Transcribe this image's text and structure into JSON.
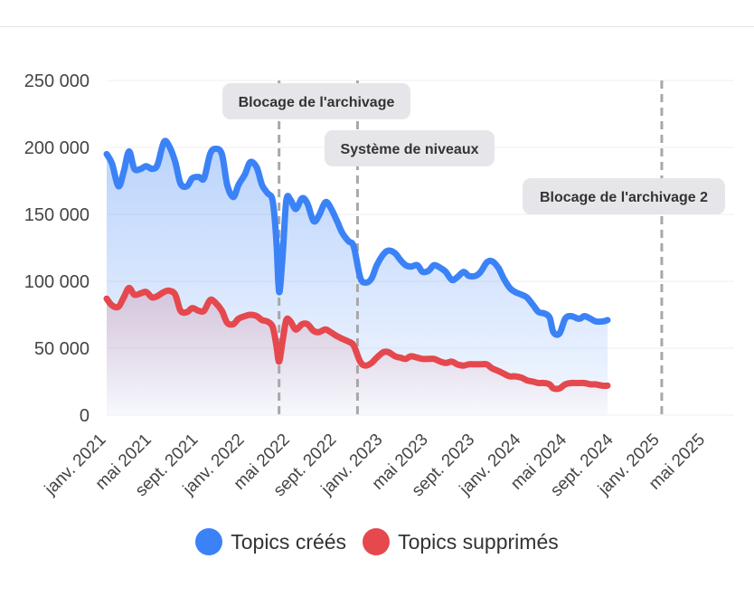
{
  "chart_data": {
    "type": "area",
    "x_tick_labels": [
      "janv. 2021",
      "mai 2021",
      "sept. 2021",
      "janv. 2022",
      "mai 2022",
      "sept. 2022",
      "janv. 2023",
      "mai 2023",
      "sept. 2023",
      "janv. 2024",
      "mai 2024",
      "sept. 2024",
      "janv. 2025",
      "mai 2025"
    ],
    "x_tick_dates": [
      "2021-01-01",
      "2021-05-01",
      "2021-09-01",
      "2022-01-01",
      "2022-05-01",
      "2022-09-01",
      "2023-01-01",
      "2023-05-01",
      "2023-09-01",
      "2024-01-01",
      "2024-05-01",
      "2024-09-01",
      "2025-01-01",
      "2025-05-01"
    ],
    "x_range": [
      "2021-01-01",
      "2025-07-15"
    ],
    "y_tick_labels": [
      "0",
      "50 000",
      "100 000",
      "150 000",
      "200 000",
      "250 000"
    ],
    "ylim": [
      0,
      250000
    ],
    "grid": true,
    "legend_position": "bottom",
    "series": [
      {
        "name": "Topics créés",
        "color": "#3b82f6",
        "points": [
          [
            "2021-01-01",
            195000
          ],
          [
            "2021-01-15",
            188000
          ],
          [
            "2021-02-01",
            171000
          ],
          [
            "2021-02-15",
            182000
          ],
          [
            "2021-03-01",
            197000
          ],
          [
            "2021-03-15",
            184000
          ],
          [
            "2021-04-01",
            184000
          ],
          [
            "2021-04-15",
            186000
          ],
          [
            "2021-05-01",
            184000
          ],
          [
            "2021-05-15",
            187000
          ],
          [
            "2021-06-01",
            204000
          ],
          [
            "2021-06-15",
            201000
          ],
          [
            "2021-07-01",
            189000
          ],
          [
            "2021-07-15",
            173000
          ],
          [
            "2021-08-01",
            171000
          ],
          [
            "2021-08-15",
            177000
          ],
          [
            "2021-09-01",
            178000
          ],
          [
            "2021-09-15",
            177000
          ],
          [
            "2021-10-01",
            195000
          ],
          [
            "2021-10-15",
            199000
          ],
          [
            "2021-11-01",
            195000
          ],
          [
            "2021-11-15",
            172000
          ],
          [
            "2021-12-01",
            163000
          ],
          [
            "2021-12-15",
            172000
          ],
          [
            "2022-01-01",
            180000
          ],
          [
            "2022-01-15",
            189000
          ],
          [
            "2022-02-01",
            185000
          ],
          [
            "2022-02-15",
            172000
          ],
          [
            "2022-03-01",
            166000
          ],
          [
            "2022-03-15",
            160000
          ],
          [
            "2022-03-25",
            130000
          ],
          [
            "2022-04-01",
            92000
          ],
          [
            "2022-04-10",
            118000
          ],
          [
            "2022-04-20",
            160000
          ],
          [
            "2022-05-01",
            161000
          ],
          [
            "2022-05-15",
            154000
          ],
          [
            "2022-06-01",
            162000
          ],
          [
            "2022-06-15",
            158000
          ],
          [
            "2022-07-01",
            145000
          ],
          [
            "2022-07-15",
            149000
          ],
          [
            "2022-08-01",
            159000
          ],
          [
            "2022-08-15",
            155000
          ],
          [
            "2022-09-01",
            145000
          ],
          [
            "2022-09-15",
            136000
          ],
          [
            "2022-10-01",
            130000
          ],
          [
            "2022-10-15",
            126000
          ],
          [
            "2022-11-01",
            103000
          ],
          [
            "2022-11-15",
            99000
          ],
          [
            "2022-12-01",
            102000
          ],
          [
            "2022-12-15",
            112000
          ],
          [
            "2023-01-01",
            120000
          ],
          [
            "2023-01-15",
            123000
          ],
          [
            "2023-02-01",
            121000
          ],
          [
            "2023-02-15",
            116000
          ],
          [
            "2023-03-01",
            112000
          ],
          [
            "2023-03-15",
            111000
          ],
          [
            "2023-04-01",
            112000
          ],
          [
            "2023-04-15",
            107000
          ],
          [
            "2023-05-01",
            108000
          ],
          [
            "2023-05-15",
            112000
          ],
          [
            "2023-06-01",
            110000
          ],
          [
            "2023-06-15",
            107000
          ],
          [
            "2023-07-01",
            101000
          ],
          [
            "2023-07-15",
            103000
          ],
          [
            "2023-08-01",
            107000
          ],
          [
            "2023-08-15",
            104000
          ],
          [
            "2023-09-01",
            104000
          ],
          [
            "2023-09-15",
            107000
          ],
          [
            "2023-10-01",
            114000
          ],
          [
            "2023-10-15",
            115000
          ],
          [
            "2023-11-01",
            110000
          ],
          [
            "2023-11-15",
            102000
          ],
          [
            "2023-12-01",
            95000
          ],
          [
            "2023-12-15",
            92000
          ],
          [
            "2024-01-01",
            90000
          ],
          [
            "2024-01-15",
            88000
          ],
          [
            "2024-02-01",
            82000
          ],
          [
            "2024-02-15",
            77000
          ],
          [
            "2024-03-01",
            76000
          ],
          [
            "2024-03-15",
            73000
          ],
          [
            "2024-03-25",
            62000
          ],
          [
            "2024-04-10",
            61000
          ],
          [
            "2024-04-25",
            72000
          ],
          [
            "2024-05-10",
            74000
          ],
          [
            "2024-06-01",
            72000
          ],
          [
            "2024-06-15",
            74000
          ],
          [
            "2024-07-01",
            72000
          ],
          [
            "2024-07-15",
            70000
          ],
          [
            "2024-08-01",
            70000
          ],
          [
            "2024-08-15",
            71000
          ]
        ]
      },
      {
        "name": "Topics supprimés",
        "color": "#e5484d",
        "points": [
          [
            "2021-01-01",
            87000
          ],
          [
            "2021-01-15",
            82000
          ],
          [
            "2021-02-01",
            81000
          ],
          [
            "2021-02-15",
            88000
          ],
          [
            "2021-03-01",
            95000
          ],
          [
            "2021-03-15",
            90000
          ],
          [
            "2021-04-01",
            91000
          ],
          [
            "2021-04-15",
            92000
          ],
          [
            "2021-05-01",
            88000
          ],
          [
            "2021-05-15",
            89000
          ],
          [
            "2021-06-01",
            92000
          ],
          [
            "2021-06-15",
            93000
          ],
          [
            "2021-07-01",
            90000
          ],
          [
            "2021-07-15",
            78000
          ],
          [
            "2021-08-01",
            77000
          ],
          [
            "2021-08-15",
            80000
          ],
          [
            "2021-09-01",
            78000
          ],
          [
            "2021-09-15",
            78000
          ],
          [
            "2021-10-01",
            86000
          ],
          [
            "2021-10-15",
            84000
          ],
          [
            "2021-11-01",
            78000
          ],
          [
            "2021-11-15",
            69000
          ],
          [
            "2021-12-01",
            68000
          ],
          [
            "2021-12-15",
            72000
          ],
          [
            "2022-01-01",
            74000
          ],
          [
            "2022-01-15",
            75000
          ],
          [
            "2022-02-01",
            74000
          ],
          [
            "2022-02-15",
            71000
          ],
          [
            "2022-03-01",
            70000
          ],
          [
            "2022-03-15",
            66000
          ],
          [
            "2022-03-25",
            52000
          ],
          [
            "2022-04-01",
            40000
          ],
          [
            "2022-04-10",
            55000
          ],
          [
            "2022-04-20",
            71000
          ],
          [
            "2022-05-01",
            70000
          ],
          [
            "2022-05-15",
            64000
          ],
          [
            "2022-06-01",
            68000
          ],
          [
            "2022-06-15",
            68000
          ],
          [
            "2022-07-01",
            63000
          ],
          [
            "2022-07-15",
            62000
          ],
          [
            "2022-08-01",
            64000
          ],
          [
            "2022-08-15",
            62000
          ],
          [
            "2022-09-01",
            59000
          ],
          [
            "2022-09-15",
            57000
          ],
          [
            "2022-10-01",
            55000
          ],
          [
            "2022-10-15",
            52000
          ],
          [
            "2022-11-01",
            40000
          ],
          [
            "2022-11-15",
            37000
          ],
          [
            "2022-12-01",
            39000
          ],
          [
            "2022-12-15",
            43000
          ],
          [
            "2023-01-01",
            47000
          ],
          [
            "2023-01-15",
            47000
          ],
          [
            "2023-02-01",
            44000
          ],
          [
            "2023-02-15",
            43000
          ],
          [
            "2023-03-01",
            42000
          ],
          [
            "2023-03-15",
            44000
          ],
          [
            "2023-04-01",
            43000
          ],
          [
            "2023-04-15",
            42000
          ],
          [
            "2023-05-01",
            42000
          ],
          [
            "2023-05-15",
            42000
          ],
          [
            "2023-06-01",
            40000
          ],
          [
            "2023-06-15",
            39000
          ],
          [
            "2023-07-01",
            40000
          ],
          [
            "2023-07-15",
            38000
          ],
          [
            "2023-08-01",
            37000
          ],
          [
            "2023-08-15",
            38000
          ],
          [
            "2023-09-01",
            38000
          ],
          [
            "2023-09-15",
            38000
          ],
          [
            "2023-10-01",
            38000
          ],
          [
            "2023-10-15",
            35000
          ],
          [
            "2023-11-01",
            33000
          ],
          [
            "2023-11-15",
            31000
          ],
          [
            "2023-12-01",
            29000
          ],
          [
            "2023-12-15",
            29000
          ],
          [
            "2024-01-01",
            28000
          ],
          [
            "2024-01-15",
            26000
          ],
          [
            "2024-02-01",
            25000
          ],
          [
            "2024-02-15",
            24000
          ],
          [
            "2024-03-01",
            24000
          ],
          [
            "2024-03-15",
            23000
          ],
          [
            "2024-03-25",
            20000
          ],
          [
            "2024-04-10",
            20000
          ],
          [
            "2024-04-25",
            23000
          ],
          [
            "2024-05-10",
            24000
          ],
          [
            "2024-06-01",
            24000
          ],
          [
            "2024-06-15",
            24000
          ],
          [
            "2024-07-01",
            23000
          ],
          [
            "2024-07-15",
            23000
          ],
          [
            "2024-08-01",
            22000
          ],
          [
            "2024-08-15",
            22000
          ]
        ]
      }
    ],
    "annotations": [
      {
        "label": "Blocage de l'archivage",
        "date": "2022-04-01",
        "line_style": "dashed"
      },
      {
        "label": "Système de niveaux",
        "date": "2022-10-25",
        "line_style": "dashed"
      },
      {
        "label": "Blocage de l'archivage 2",
        "date": "2025-01-05",
        "line_style": "dashed"
      }
    ]
  }
}
